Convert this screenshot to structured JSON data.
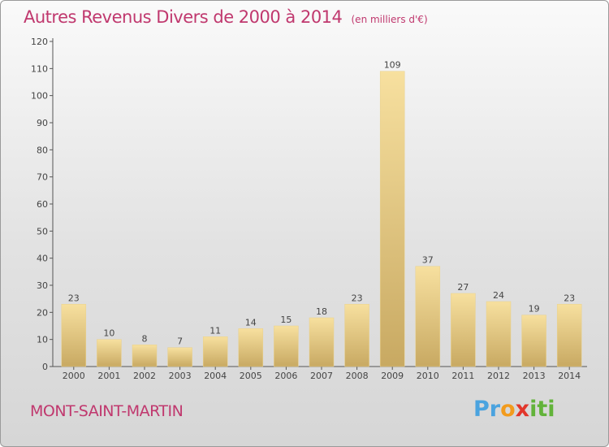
{
  "header": {
    "title": "Autres Revenus Divers de 2000 à 2014",
    "subtitle": "(en milliers d'€)"
  },
  "footer": {
    "commune": "MONT-SAINT-MARTIN",
    "logo_text": "Proxiti"
  },
  "colors": {
    "title": "#c0386e",
    "bar_light": "#f5dd98",
    "bar_dark": "#c9ab67",
    "axis": "#555555"
  },
  "chart_data": {
    "type": "bar",
    "title": "Autres Revenus Divers de 2000 à 2014",
    "subtitle": "(en milliers d'€)",
    "categories": [
      "2000",
      "2001",
      "2002",
      "2003",
      "2004",
      "2005",
      "2006",
      "2007",
      "2008",
      "2009",
      "2010",
      "2011",
      "2012",
      "2013",
      "2014"
    ],
    "values": [
      23,
      10,
      8,
      7,
      11,
      14,
      15,
      18,
      23,
      109,
      37,
      27,
      24,
      19,
      23
    ],
    "ylim": [
      0,
      120
    ],
    "yticks": [
      0,
      10,
      20,
      30,
      40,
      50,
      60,
      70,
      80,
      90,
      100,
      110,
      120
    ],
    "grid": false,
    "data_labels": true
  }
}
